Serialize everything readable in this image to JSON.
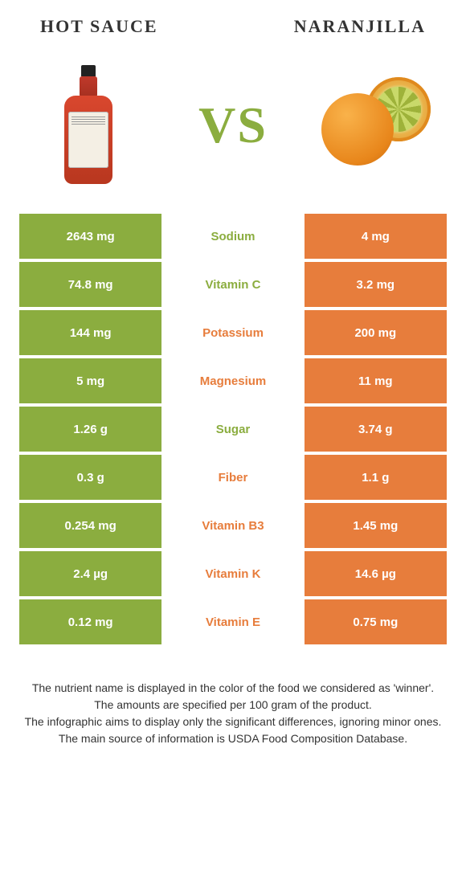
{
  "colors": {
    "left": "#8bad3f",
    "right": "#e77d3c",
    "mid_bg": "#ffffff"
  },
  "header": {
    "left_title": "Hot sauce",
    "right_title": "Naranjilla",
    "vs": "VS"
  },
  "rows": [
    {
      "nutrient": "Sodium",
      "left": "2643 mg",
      "right": "4 mg",
      "winner": "left"
    },
    {
      "nutrient": "Vitamin C",
      "left": "74.8 mg",
      "right": "3.2 mg",
      "winner": "left"
    },
    {
      "nutrient": "Potassium",
      "left": "144 mg",
      "right": "200 mg",
      "winner": "right"
    },
    {
      "nutrient": "Magnesium",
      "left": "5 mg",
      "right": "11 mg",
      "winner": "right"
    },
    {
      "nutrient": "Sugar",
      "left": "1.26 g",
      "right": "3.74 g",
      "winner": "left"
    },
    {
      "nutrient": "Fiber",
      "left": "0.3 g",
      "right": "1.1 g",
      "winner": "right"
    },
    {
      "nutrient": "Vitamin B3",
      "left": "0.254 mg",
      "right": "1.45 mg",
      "winner": "right"
    },
    {
      "nutrient": "Vitamin K",
      "left": "2.4 µg",
      "right": "14.6 µg",
      "winner": "right"
    },
    {
      "nutrient": "Vitamin E",
      "left": "0.12 mg",
      "right": "0.75 mg",
      "winner": "right"
    }
  ],
  "footer": {
    "line1": "The nutrient name is displayed in the color of the food we considered as 'winner'.",
    "line2": "The amounts are specified per 100 gram of the product.",
    "line3": "The infographic aims to display only the significant differences, ignoring minor ones.",
    "line4": "The main source of information is USDA Food Composition Database."
  }
}
